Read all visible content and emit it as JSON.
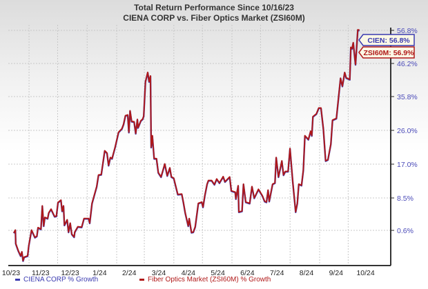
{
  "chart_data": {
    "type": "line",
    "title": "Total Return Performance Since 10/16/23",
    "subtitle": "CIENA CORP  vs.  Fiber Optics Market (ZSI60M)",
    "x_unit": "days since 10/16/23",
    "x_tick_labels": [
      "10/23",
      "11/23",
      "12/23",
      "1/24",
      "2/24",
      "3/24",
      "4/24",
      "5/24",
      "6/24",
      "7/24",
      "8/24",
      "9/24",
      "10/24"
    ],
    "y_tick_labels": [
      "0.6%",
      "8.5%",
      "17.0%",
      "26.0%",
      "35.8%",
      "46.2%",
      "56.8%"
    ],
    "y_ticks": [
      0.6,
      8.5,
      17.0,
      26.0,
      35.8,
      46.2,
      56.8
    ],
    "ylabel": "% Growth",
    "grid": true,
    "legend_position": "bottom",
    "colors": {
      "CIEN": "#3a3ab0",
      "ZSI60M": "#b01818"
    },
    "x": [
      0,
      1.7,
      2,
      4.8,
      7.2,
      8.5,
      9.7,
      10.9,
      14.5,
      15.7,
      18.6,
      22.2,
      24.2,
      25.4,
      28.5,
      29.9,
      31.4,
      32.6,
      35.5,
      36.7,
      39.1,
      42.8,
      44.7,
      46.4,
      49.5,
      50.7,
      52.2,
      53.1,
      56,
      57.5,
      59.2,
      60.9,
      63.3,
      64,
      67.2,
      71.2,
      73.7,
      78.5,
      79.7,
      82.1,
      87,
      88.9,
      91.8,
      95.4,
      97.8,
      99.5,
      101.4,
      103.1,
      106.3,
      109.9,
      113.5,
      115.2,
      117.2,
      119.6,
      120.8,
      122,
      123.7,
      126.3,
      128,
      129.7,
      130.4,
      133.3,
      135.3,
      136.4,
      138.2,
      140.6,
      142,
      143.5,
      144.2,
      145.4,
      147.3,
      149.8,
      151.7,
      154.6,
      158.5,
      161.1,
      163.8,
      165.4,
      167.9,
      172.2,
      176.3,
      178,
      179.9,
      183.1,
      184.1,
      186.5,
      188.4,
      190.4,
      193.7,
      197.3,
      198.6,
      200.5,
      202.9,
      204.3,
      207.7,
      210.6,
      213,
      215.9,
      219.8,
      221.7,
      226.6,
      228.3,
      232.4,
      233.1,
      235.5,
      236.2,
      239.6,
      241.1,
      243.5,
      247.6,
      250,
      252.4,
      256.8,
      260.9,
      263.3,
      265.2,
      266.9,
      268.1,
      271.7,
      274.1,
      275.4,
      277.8,
      281.4,
      283.1,
      285,
      287.9,
      289.9,
      292.8,
      295.9,
      297.6,
      299.1,
      302,
      303.9,
      305.6,
      309.2,
      311.6,
      312.8,
      314,
      317.6,
      320.1,
      322.5,
      324.9,
      327.3,
      329.7,
      332.8,
      334.6,
      338.6,
      343,
      344.9,
      347.3,
      349,
      352.7,
      353.8,
      355.1,
      356.3,
      358.7,
      361.1,
      362.8
    ],
    "series": [
      {
        "name": "CIENA CORP % Growth",
        "ticker": "CIEN",
        "last_label": "CIEN: 56.8%",
        "values": [
          0,
          0.7,
          -2.6,
          -4.4,
          -5.6,
          -4.6,
          -6.8,
          -5.9,
          -5.6,
          -3.1,
          0.7,
          -1.1,
          -0.8,
          1.3,
          0.9,
          6.6,
          1.7,
          3.8,
          3.5,
          4.9,
          5.8,
          4.0,
          4.1,
          7.4,
          8.0,
          5.3,
          6.6,
          1.9,
          3.2,
          0.2,
          2.4,
          -0.3,
          -1.0,
          0.2,
          1.5,
          1.4,
          3.5,
          3.5,
          2.4,
          7.2,
          11.4,
          14.3,
          14.4,
          20.6,
          20.0,
          16.7,
          18.8,
          18.5,
          21.5,
          25.5,
          26.5,
          27.8,
          30.3,
          30.5,
          25.5,
          31.7,
          28.6,
          28.5,
          25.2,
          29.2,
          26.8,
          28.8,
          29.3,
          30.2,
          40.5,
          43.4,
          40.5,
          42.3,
          21.5,
          24.6,
          18.5,
          18.5,
          14.9,
          13.8,
          17.1,
          14.1,
          16.1,
          13.8,
          13.5,
          9.4,
          9.5,
          7.5,
          4.9,
          1.7,
          3.5,
          0.1,
          0.2,
          1.5,
          7.2,
          7.5,
          6.3,
          9.1,
          12.0,
          12.9,
          12.9,
          11.9,
          13.3,
          12.3,
          13.9,
          12.6,
          13.8,
          10.3,
          10.0,
          8.3,
          11.6,
          5.1,
          5.3,
          12.0,
          7.5,
          7.2,
          11.4,
          8.5,
          10.7,
          9.1,
          7.7,
          7.5,
          10.5,
          7.7,
          12.0,
          12.3,
          18.8,
          13.8,
          17.9,
          14.3,
          15.2,
          15.2,
          21.2,
          12.6,
          5.1,
          7.2,
          12.0,
          11.7,
          15.5,
          24.6,
          23.6,
          25.8,
          24.6,
          30.0,
          30.8,
          32.5,
          32.5,
          26.5,
          17.9,
          18.2,
          22.4,
          29.0,
          29.5,
          41.6,
          39.1,
          43.4,
          41.7,
          41.2,
          51.4,
          51.0,
          52.9,
          45.9,
          57.0,
          56.8
        ]
      },
      {
        "name": "Fiber Optics Market (ZSI60M) % Growth",
        "ticker": "ZSI60M",
        "last_label": "ZSI60M: 56.9%",
        "values": [
          0,
          0.7,
          -2.6,
          -4.4,
          -5.6,
          -4.6,
          -6.8,
          -5.9,
          -5.6,
          -3.1,
          0.7,
          -1.1,
          -0.8,
          1.3,
          0.9,
          6.6,
          1.7,
          3.8,
          3.5,
          4.9,
          5.8,
          4.0,
          4.1,
          7.4,
          8.0,
          5.3,
          6.6,
          1.9,
          3.2,
          0.2,
          2.4,
          -0.3,
          -1.0,
          0.2,
          1.5,
          1.4,
          3.5,
          3.5,
          2.4,
          7.2,
          11.4,
          14.3,
          14.4,
          20.6,
          20.0,
          16.7,
          18.8,
          18.5,
          21.5,
          25.5,
          26.5,
          27.8,
          30.3,
          30.5,
          25.5,
          31.7,
          28.6,
          28.5,
          25.2,
          29.2,
          26.8,
          28.8,
          29.3,
          30.2,
          40.5,
          43.4,
          40.5,
          42.3,
          21.5,
          24.6,
          18.5,
          18.5,
          14.9,
          13.8,
          17.1,
          14.1,
          16.1,
          13.8,
          13.5,
          9.4,
          9.5,
          7.5,
          4.9,
          1.7,
          3.5,
          0.1,
          0.2,
          1.5,
          7.2,
          7.5,
          6.3,
          9.1,
          12.0,
          12.9,
          12.9,
          11.9,
          13.3,
          12.3,
          13.9,
          12.6,
          13.8,
          10.3,
          10.0,
          8.3,
          11.6,
          5.1,
          5.3,
          12.0,
          7.5,
          7.2,
          11.4,
          8.5,
          10.7,
          9.1,
          7.7,
          7.5,
          10.5,
          7.7,
          12.0,
          12.3,
          18.8,
          13.8,
          17.9,
          14.3,
          15.2,
          15.2,
          21.2,
          12.6,
          5.1,
          7.2,
          12.0,
          11.7,
          15.5,
          24.6,
          23.6,
          25.8,
          24.6,
          30.0,
          30.8,
          32.5,
          32.5,
          26.5,
          17.9,
          18.2,
          22.4,
          29.0,
          29.5,
          41.6,
          39.1,
          43.4,
          41.7,
          41.2,
          51.4,
          51.0,
          52.9,
          45.9,
          57.0,
          56.9
        ]
      }
    ]
  }
}
